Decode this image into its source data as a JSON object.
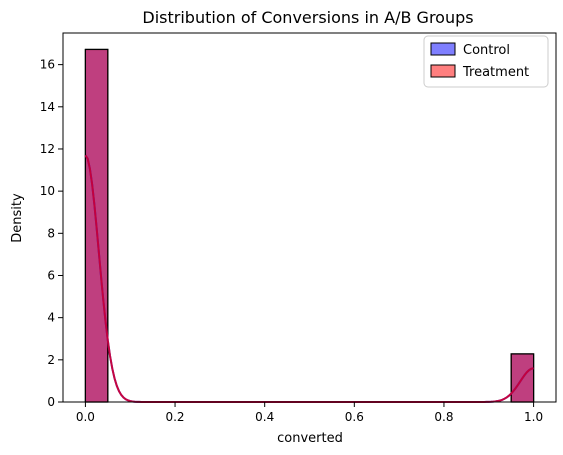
{
  "chart_data": {
    "type": "bar",
    "title": "Distribution of Conversions in A/B Groups",
    "xlabel": "converted",
    "ylabel": "Density",
    "xlim": [
      -0.05,
      1.05
    ],
    "ylim": [
      0,
      17.5
    ],
    "xticks": [
      0.0,
      0.2,
      0.4,
      0.6,
      0.8,
      1.0
    ],
    "xtick_labels": [
      "0.0",
      "0.2",
      "0.4",
      "0.6",
      "0.8",
      "1.0"
    ],
    "yticks": [
      0,
      2,
      4,
      6,
      8,
      10,
      12,
      14,
      16
    ],
    "ytick_labels": [
      "0",
      "2",
      "4",
      "6",
      "8",
      "10",
      "12",
      "14",
      "16"
    ],
    "bin_width": 0.05,
    "legend_position": "upper right",
    "grid": false,
    "series": [
      {
        "name": "Control",
        "fill_color": "#0000ff",
        "fill_opacity": 0.5,
        "kde_color": "#0000ff",
        "bins": [
          {
            "x0": 0.0,
            "x1": 0.05,
            "density": 16.72
          },
          {
            "x0": 0.95,
            "x1": 1.0,
            "density": 2.28
          }
        ],
        "kde": {
          "x": [
            0.0,
            1.0
          ],
          "peak_at_0": 11.7,
          "peak_at_1": 1.6
        }
      },
      {
        "name": "Treatment",
        "fill_color": "#ff0000",
        "fill_opacity": 0.5,
        "kde_color": "#ff0000",
        "bins": [
          {
            "x0": 0.0,
            "x1": 0.05,
            "density": 16.72
          },
          {
            "x0": 0.95,
            "x1": 1.0,
            "density": 2.28
          }
        ],
        "kde": {
          "x": [
            0.0,
            1.0
          ],
          "peak_at_0": 11.7,
          "peak_at_1": 1.6
        }
      }
    ]
  }
}
